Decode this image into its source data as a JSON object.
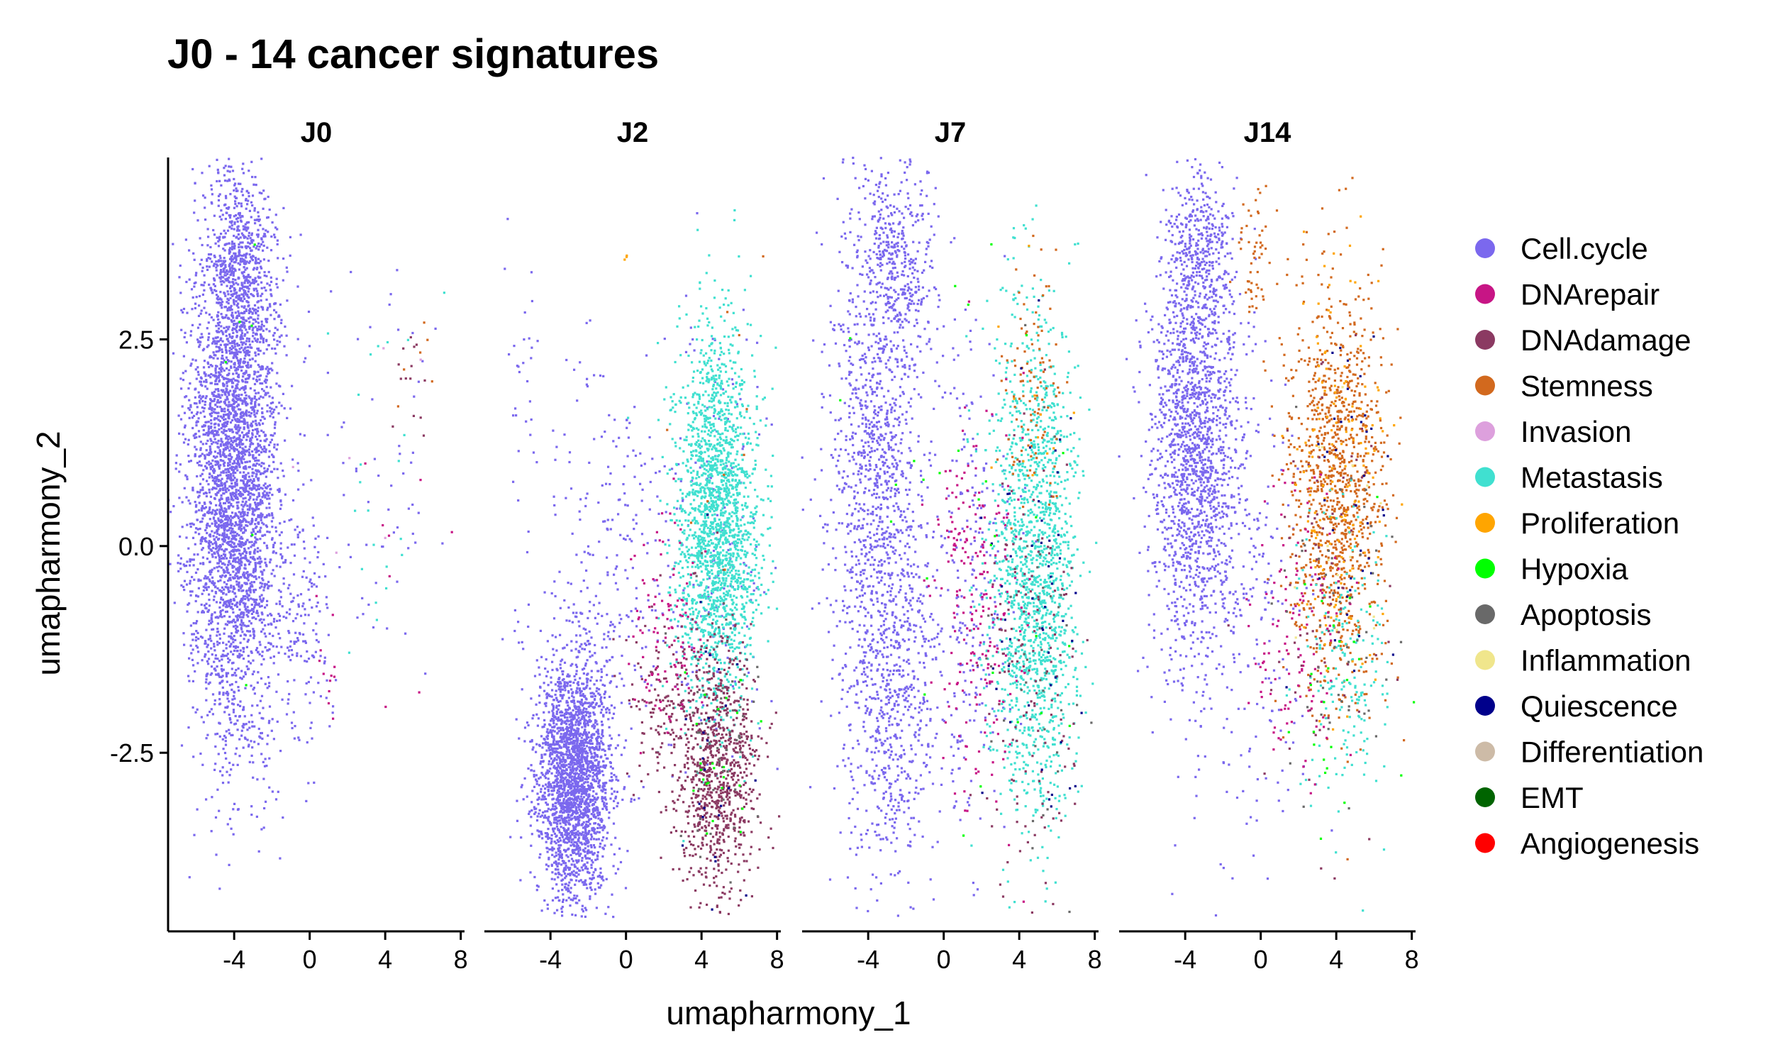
{
  "chart_data": {
    "type": "scatter",
    "title": "J0 - 14 cancer signatures",
    "xlabel": "umapharmony_1",
    "ylabel": "umapharmony_2",
    "xlim": [
      -7.5,
      8.2
    ],
    "ylim": [
      -4.6,
      4.7
    ],
    "x_ticks": [
      -4,
      0,
      4,
      8
    ],
    "x_tick_labels": [
      "-4",
      "0",
      "4",
      "8"
    ],
    "y_ticks": [
      -2.5,
      0.0,
      2.5
    ],
    "y_tick_labels": [
      "-2.5",
      "0.0",
      "2.5"
    ],
    "legend_position": "right",
    "grid": false,
    "facets": [
      {
        "name": "J0",
        "clusters": [
          {
            "series": "Cell.cycle",
            "n": 3600,
            "cx": -4.0,
            "cy": 0.8,
            "sx": 1.2,
            "sy": 1.6
          },
          {
            "series": "Cell.cycle",
            "n": 500,
            "cx": -3.6,
            "cy": 3.4,
            "sx": 0.8,
            "sy": 0.6
          },
          {
            "series": "Cell.cycle",
            "n": 140,
            "cx": -0.3,
            "cy": -0.9,
            "sx": 0.8,
            "sy": 0.8
          },
          {
            "series": "Cell.cycle",
            "n": 60,
            "cx": 3.5,
            "cy": 0.5,
            "sx": 1.6,
            "sy": 1.4
          },
          {
            "series": "Metastasis",
            "n": 22,
            "cx": 4.2,
            "cy": 1.2,
            "sx": 1.3,
            "sy": 1.3
          },
          {
            "series": "DNAdamage",
            "n": 14,
            "cx": 5.3,
            "cy": 2.0,
            "sx": 0.5,
            "sy": 0.5
          },
          {
            "series": "Stemness",
            "n": 6,
            "cx": 5.4,
            "cy": 2.1,
            "sx": 0.5,
            "sy": 0.5
          },
          {
            "series": "DNArepair",
            "n": 12,
            "cx": 0.9,
            "cy": -1.5,
            "sx": 0.3,
            "sy": 0.3
          },
          {
            "series": "DNArepair",
            "n": 8,
            "cx": 4.5,
            "cy": -0.3,
            "sx": 1.5,
            "sy": 1.0
          },
          {
            "series": "Hypoxia",
            "n": 6,
            "cx": -3.0,
            "cy": 1.5,
            "sx": 1.0,
            "sy": 1.5
          },
          {
            "series": "Invasion",
            "n": 6,
            "cx": 3.5,
            "cy": 1.0,
            "sx": 1.5,
            "sy": 1.0
          }
        ]
      },
      {
        "name": "J2",
        "clusters": [
          {
            "series": "Cell.cycle",
            "n": 2400,
            "cx": -2.8,
            "cy": -2.8,
            "sx": 1.0,
            "sy": 0.75
          },
          {
            "series": "Cell.cycle",
            "n": 250,
            "cx": -0.8,
            "cy": -0.3,
            "sx": 1.9,
            "sy": 1.3
          },
          {
            "series": "Cell.cycle",
            "n": 25,
            "cx": -5.5,
            "cy": 2.0,
            "sx": 0.5,
            "sy": 0.9
          },
          {
            "series": "Cell.cycle",
            "n": 180,
            "cx": 4.5,
            "cy": 0.0,
            "sx": 1.4,
            "sy": 1.3
          },
          {
            "series": "Metastasis",
            "n": 2000,
            "cx": 4.8,
            "cy": 0.3,
            "sx": 1.1,
            "sy": 1.1
          },
          {
            "series": "DNAdamage",
            "n": 900,
            "cx": 4.8,
            "cy": -2.7,
            "sx": 1.1,
            "sy": 0.75
          },
          {
            "series": "DNAdamage",
            "n": 120,
            "cx": 1.8,
            "cy": -1.9,
            "sx": 0.9,
            "sy": 0.5
          },
          {
            "series": "DNArepair",
            "n": 110,
            "cx": 2.2,
            "cy": -1.0,
            "sx": 1.0,
            "sy": 0.7
          },
          {
            "series": "Apoptosis",
            "n": 60,
            "cx": 5.0,
            "cy": -2.0,
            "sx": 1.0,
            "sy": 1.0
          },
          {
            "series": "Hypoxia",
            "n": 25,
            "cx": 4.5,
            "cy": -2.8,
            "sx": 1.0,
            "sy": 0.6
          },
          {
            "series": "Quiescence",
            "n": 25,
            "cx": 5.0,
            "cy": -2.5,
            "sx": 1.0,
            "sy": 1.0
          },
          {
            "series": "Stemness",
            "n": 10,
            "cx": 4.5,
            "cy": 1.5,
            "sx": 1.0,
            "sy": 1.0
          },
          {
            "series": "Proliferation",
            "n": 3,
            "cx": 0.0,
            "cy": 3.5,
            "sx": 0.05,
            "sy": 0.05
          }
        ]
      },
      {
        "name": "J7",
        "clusters": [
          {
            "series": "Cell.cycle",
            "n": 1400,
            "cx": -3.4,
            "cy": 0.5,
            "sx": 1.3,
            "sy": 2.0
          },
          {
            "series": "Cell.cycle",
            "n": 350,
            "cx": -2.5,
            "cy": 3.5,
            "sx": 1.0,
            "sy": 0.6
          },
          {
            "series": "Cell.cycle",
            "n": 300,
            "cx": -2.2,
            "cy": -2.2,
            "sx": 1.2,
            "sy": 1.0
          },
          {
            "series": "Cell.cycle",
            "n": 250,
            "cx": 1.5,
            "cy": -0.5,
            "sx": 1.2,
            "sy": 1.5
          },
          {
            "series": "Metastasis",
            "n": 1600,
            "cx": 4.8,
            "cy": -0.3,
            "sx": 1.2,
            "sy": 1.5
          },
          {
            "series": "DNArepair",
            "n": 220,
            "cx": 1.8,
            "cy": -0.7,
            "sx": 1.2,
            "sy": 1.1
          },
          {
            "series": "DNAdamage",
            "n": 140,
            "cx": 4.8,
            "cy": -1.6,
            "sx": 1.2,
            "sy": 1.4
          },
          {
            "series": "Stemness",
            "n": 100,
            "cx": 4.8,
            "cy": 1.8,
            "sx": 0.9,
            "sy": 0.7
          },
          {
            "series": "Quiescence",
            "n": 50,
            "cx": 5.0,
            "cy": -1.0,
            "sx": 1.2,
            "sy": 1.5
          },
          {
            "series": "Apoptosis",
            "n": 40,
            "cx": 5.0,
            "cy": -1.0,
            "sx": 1.2,
            "sy": 1.5
          },
          {
            "series": "Hypoxia",
            "n": 30,
            "cx": 1.0,
            "cy": 0.0,
            "sx": 3.0,
            "sy": 2.0
          },
          {
            "series": "Proliferation",
            "n": 12,
            "cx": 4.5,
            "cy": 1.5,
            "sx": 1.0,
            "sy": 1.0
          }
        ]
      },
      {
        "name": "J14",
        "clusters": [
          {
            "series": "Cell.cycle",
            "n": 1700,
            "cx": -3.5,
            "cy": 1.3,
            "sx": 1.2,
            "sy": 1.4
          },
          {
            "series": "Cell.cycle",
            "n": 300,
            "cx": -3.2,
            "cy": 3.6,
            "sx": 0.9,
            "sy": 0.5
          },
          {
            "series": "Cell.cycle",
            "n": 200,
            "cx": -0.5,
            "cy": -1.0,
            "sx": 1.5,
            "sy": 1.4
          },
          {
            "series": "Stemness",
            "n": 1100,
            "cx": 4.0,
            "cy": 0.7,
            "sx": 1.3,
            "sy": 1.2
          },
          {
            "series": "Stemness",
            "n": 60,
            "cx": -0.3,
            "cy": 3.6,
            "sx": 0.6,
            "sy": 0.6
          },
          {
            "series": "Metastasis",
            "n": 180,
            "cx": 4.5,
            "cy": -1.4,
            "sx": 1.1,
            "sy": 0.9
          },
          {
            "series": "DNArepair",
            "n": 130,
            "cx": 1.8,
            "cy": -1.0,
            "sx": 1.2,
            "sy": 0.9
          },
          {
            "series": "DNAdamage",
            "n": 80,
            "cx": 3.5,
            "cy": -0.5,
            "sx": 1.5,
            "sy": 1.5
          },
          {
            "series": "Proliferation",
            "n": 150,
            "cx": 4.2,
            "cy": 0.8,
            "sx": 1.3,
            "sy": 1.3
          },
          {
            "series": "Quiescence",
            "n": 40,
            "cx": 4.5,
            "cy": 0.5,
            "sx": 1.2,
            "sy": 1.2
          },
          {
            "series": "Apoptosis",
            "n": 50,
            "cx": 4.0,
            "cy": -1.0,
            "sx": 1.5,
            "sy": 1.2
          },
          {
            "series": "Hypoxia",
            "n": 25,
            "cx": 4.0,
            "cy": -1.5,
            "sx": 1.5,
            "sy": 1.0
          },
          {
            "series": "Inflammation",
            "n": 15,
            "cx": 4.0,
            "cy": 0.0,
            "sx": 1.5,
            "sy": 1.5
          }
        ]
      }
    ],
    "series": [
      {
        "name": "Cell.cycle",
        "color": "#7B68EE"
      },
      {
        "name": "DNArepair",
        "color": "#C71585"
      },
      {
        "name": "DNAdamage",
        "color": "#8B3A62"
      },
      {
        "name": "Stemness",
        "color": "#D2691E"
      },
      {
        "name": "Invasion",
        "color": "#DDA0DD"
      },
      {
        "name": "Metastasis",
        "color": "#40E0D0"
      },
      {
        "name": "Proliferation",
        "color": "#FFA500"
      },
      {
        "name": "Hypoxia",
        "color": "#00FF00"
      },
      {
        "name": "Apoptosis",
        "color": "#696969"
      },
      {
        "name": "Inflammation",
        "color": "#F0E68C"
      },
      {
        "name": "Quiescence",
        "color": "#00008B"
      },
      {
        "name": "Differentiation",
        "color": "#CDBBA7"
      },
      {
        "name": "EMT",
        "color": "#006400"
      },
      {
        "name": "Angiogenesis",
        "color": "#FF0000"
      }
    ]
  }
}
